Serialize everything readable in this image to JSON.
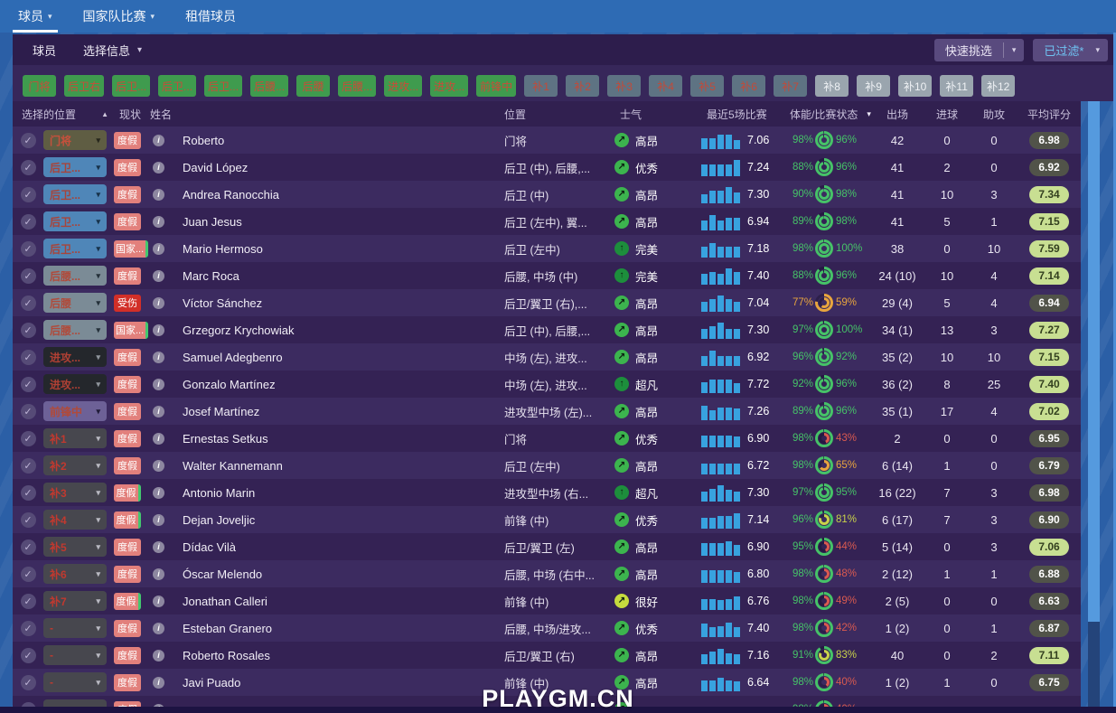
{
  "nav": {
    "tabs": [
      {
        "label": "球员"
      },
      {
        "label": "国家队比赛"
      },
      {
        "label": "租借球员"
      }
    ]
  },
  "panel": {
    "title_tab": "球员",
    "view_dropdown": "选择信息",
    "quick_pick": "快速挑选",
    "filter_button": "已过滤*"
  },
  "filters": {
    "green": [
      "门将",
      "后卫右",
      "后卫...",
      "后卫...",
      "后卫...",
      "后腰...",
      "后腰",
      "后腰...",
      "进攻...",
      "进攻...",
      "前锋中"
    ],
    "slate": [
      "补1",
      "补2",
      "补3",
      "补4",
      "补5",
      "补6",
      "补7"
    ],
    "light": [
      "补8",
      "补9",
      "补10",
      "补11",
      "补12"
    ]
  },
  "table_headers": {
    "selected_position": "选择的位置",
    "status": "现状",
    "name": "姓名",
    "position": "位置",
    "morale": "士气",
    "last5": "最近5场比赛",
    "condition": "体能/比赛状态",
    "apps": "出场",
    "goals": "进球",
    "assists": "助攻",
    "avg_rating": "平均评分"
  },
  "players": [
    {
      "sel": "门将",
      "sel_type": "gk",
      "status": "度假",
      "status_type": "vac",
      "name": "Roberto",
      "position": "门将",
      "morale": "高昂",
      "morale_type": "bright",
      "bars": [
        62,
        62,
        80,
        80,
        52
      ],
      "last5": "7.06",
      "cond": 98,
      "sharp": 96,
      "apps": "42",
      "goals": "0",
      "assists": "0",
      "rating": "6.98"
    },
    {
      "sel": "后卫...",
      "sel_type": "def",
      "status": "度假",
      "status_type": "vac",
      "name": "David López",
      "position": "后卫 (中), 后腰,...",
      "morale": "优秀",
      "morale_type": "bright",
      "bars": [
        66,
        66,
        66,
        66,
        88
      ],
      "last5": "7.24",
      "cond": 88,
      "sharp": 96,
      "apps": "41",
      "goals": "2",
      "assists": "0",
      "rating": "6.92"
    },
    {
      "sel": "后卫...",
      "sel_type": "def",
      "status": "度假",
      "status_type": "vac",
      "name": "Andrea Ranocchia",
      "position": "后卫 (中)",
      "morale": "高昂",
      "morale_type": "bright",
      "bars": [
        52,
        72,
        72,
        88,
        62
      ],
      "last5": "7.30",
      "cond": 90,
      "sharp": 98,
      "apps": "41",
      "goals": "10",
      "assists": "3",
      "rating": "7.34"
    },
    {
      "sel": "后卫...",
      "sel_type": "def",
      "status": "度假",
      "status_type": "vac",
      "name": "Juan Jesus",
      "position": "后卫 (左中), 翼...",
      "morale": "高昂",
      "morale_type": "bright",
      "bars": [
        56,
        84,
        56,
        68,
        68
      ],
      "last5": "6.94",
      "cond": 89,
      "sharp": 98,
      "apps": "41",
      "goals": "5",
      "assists": "1",
      "rating": "7.15"
    },
    {
      "sel": "后卫...",
      "sel_type": "def",
      "status": "国家...",
      "status_type": "natl",
      "name": "Mario Hermoso",
      "position": "后卫 (左中)",
      "morale": "完美",
      "morale_type": "dark",
      "bars": [
        62,
        78,
        62,
        62,
        62
      ],
      "last5": "7.18",
      "cond": 98,
      "sharp": 100,
      "apps": "38",
      "goals": "0",
      "assists": "10",
      "rating": "7.59"
    },
    {
      "sel": "后腰...",
      "sel_type": "dm",
      "status": "度假",
      "status_type": "vac",
      "name": "Marc Roca",
      "position": "后腰, 中场 (中)",
      "morale": "完美",
      "morale_type": "dark",
      "bars": [
        62,
        72,
        62,
        88,
        68
      ],
      "last5": "7.40",
      "cond": 88,
      "sharp": 96,
      "apps": "24 (10)",
      "goals": "10",
      "assists": "4",
      "rating": "7.14"
    },
    {
      "sel": "后腰",
      "sel_type": "dm",
      "status": "受伤",
      "status_type": "inj",
      "name": "Víctor Sánchez",
      "position": "后卫/翼卫 (右),...",
      "morale": "高昂",
      "morale_type": "bright",
      "bars": [
        56,
        68,
        90,
        68,
        56
      ],
      "last5": "7.04",
      "cond": 77,
      "sharp": 59,
      "apps": "29 (4)",
      "goals": "5",
      "assists": "4",
      "rating": "6.94"
    },
    {
      "sel": "后腰...",
      "sel_type": "dm",
      "status": "国家...",
      "status_type": "natl",
      "name": "Grzegorz Krychowiak",
      "position": "后卫 (中), 后腰,...",
      "morale": "高昂",
      "morale_type": "bright",
      "bars": [
        56,
        72,
        90,
        56,
        56
      ],
      "last5": "7.30",
      "cond": 97,
      "sharp": 100,
      "apps": "34 (1)",
      "goals": "13",
      "assists": "3",
      "rating": "7.27"
    },
    {
      "sel": "进攻...",
      "sel_type": "att",
      "status": "度假",
      "status_type": "vac",
      "name": "Samuel Adegbenro",
      "position": "中场 (左), 进攻...",
      "morale": "高昂",
      "morale_type": "bright",
      "bars": [
        56,
        84,
        56,
        56,
        56
      ],
      "last5": "6.92",
      "cond": 96,
      "sharp": 92,
      "apps": "35 (2)",
      "goals": "10",
      "assists": "10",
      "rating": "7.15"
    },
    {
      "sel": "进攻...",
      "sel_type": "att",
      "status": "度假",
      "status_type": "vac",
      "name": "Gonzalo Martínez",
      "position": "中场 (左), 进攻...",
      "morale": "超凡",
      "morale_type": "dark",
      "bars": [
        62,
        74,
        74,
        74,
        56
      ],
      "last5": "7.72",
      "cond": 92,
      "sharp": 96,
      "apps": "36 (2)",
      "goals": "8",
      "assists": "25",
      "rating": "7.40"
    },
    {
      "sel": "前锋中",
      "sel_type": "st",
      "status": "度假",
      "status_type": "vac",
      "name": "Josef Martínez",
      "position": "进攻型中场 (左)...",
      "morale": "高昂",
      "morale_type": "bright",
      "bars": [
        80,
        56,
        72,
        72,
        66
      ],
      "last5": "7.26",
      "cond": 89,
      "sharp": 96,
      "apps": "35 (1)",
      "goals": "17",
      "assists": "4",
      "rating": "7.02"
    },
    {
      "sel": "补1",
      "sel_type": "sub",
      "status": "度假",
      "status_type": "vac",
      "name": "Ernestas Setkus",
      "position": "门将",
      "morale": "优秀",
      "morale_type": "bright",
      "bars": [
        66,
        66,
        66,
        66,
        60
      ],
      "last5": "6.90",
      "cond": 98,
      "sharp": 43,
      "apps": "2",
      "goals": "0",
      "assists": "0",
      "rating": "6.95"
    },
    {
      "sel": "补2",
      "sel_type": "sub",
      "status": "度假",
      "status_type": "vac",
      "name": "Walter Kannemann",
      "position": "后卫 (左中)",
      "morale": "高昂",
      "morale_type": "bright",
      "bars": [
        62,
        62,
        62,
        62,
        62
      ],
      "last5": "6.72",
      "cond": 98,
      "sharp": 65,
      "apps": "6 (14)",
      "goals": "1",
      "assists": "0",
      "rating": "6.79"
    },
    {
      "sel": "补3",
      "sel_type": "sub",
      "status": "度假",
      "status_type": "vacg",
      "name": "Antonio Marin",
      "position": "进攻型中场 (右...",
      "morale": "超凡",
      "morale_type": "dark",
      "bars": [
        56,
        72,
        90,
        66,
        56
      ],
      "last5": "7.30",
      "cond": 97,
      "sharp": 95,
      "apps": "16 (22)",
      "goals": "7",
      "assists": "3",
      "rating": "6.98"
    },
    {
      "sel": "补4",
      "sel_type": "sub",
      "status": "度假",
      "status_type": "vacg",
      "name": "Dejan Joveljic",
      "position": "前锋 (中)",
      "morale": "优秀",
      "morale_type": "bright",
      "bars": [
        62,
        62,
        72,
        72,
        84
      ],
      "last5": "7.14",
      "cond": 96,
      "sharp": 81,
      "apps": "6 (17)",
      "goals": "7",
      "assists": "3",
      "rating": "6.90"
    },
    {
      "sel": "补5",
      "sel_type": "sub",
      "status": "度假",
      "status_type": "vac",
      "name": "Dídac Vilà",
      "position": "后卫/翼卫 (左)",
      "morale": "高昂",
      "morale_type": "bright",
      "bars": [
        68,
        68,
        68,
        80,
        62
      ],
      "last5": "6.90",
      "cond": 95,
      "sharp": 44,
      "apps": "5 (14)",
      "goals": "0",
      "assists": "3",
      "rating": "7.06"
    },
    {
      "sel": "补6",
      "sel_type": "sub",
      "status": "度假",
      "status_type": "vac",
      "name": "Óscar Melendo",
      "position": "后腰, 中场 (右中...",
      "morale": "高昂",
      "morale_type": "bright",
      "bars": [
        68,
        68,
        68,
        68,
        62
      ],
      "last5": "6.80",
      "cond": 98,
      "sharp": 48,
      "apps": "2 (12)",
      "goals": "1",
      "assists": "1",
      "rating": "6.88"
    },
    {
      "sel": "补7",
      "sel_type": "sub",
      "status": "度假",
      "status_type": "vacg",
      "name": "Jonathan Calleri",
      "position": "前锋 (中)",
      "morale": "很好",
      "morale_type": "yellow",
      "bars": [
        62,
        62,
        56,
        62,
        74
      ],
      "last5": "6.76",
      "cond": 98,
      "sharp": 49,
      "apps": "2 (5)",
      "goals": "0",
      "assists": "0",
      "rating": "6.63"
    },
    {
      "sel": "-",
      "sel_type": "sub",
      "status": "度假",
      "status_type": "vac",
      "name": "Esteban Granero",
      "position": "后腰, 中场/进攻...",
      "morale": "优秀",
      "morale_type": "bright",
      "bars": [
        74,
        56,
        62,
        80,
        56
      ],
      "last5": "7.40",
      "cond": 98,
      "sharp": 42,
      "apps": "1 (2)",
      "goals": "0",
      "assists": "1",
      "rating": "6.87"
    },
    {
      "sel": "-",
      "sel_type": "sub",
      "status": "度假",
      "status_type": "vac",
      "name": "Roberto Rosales",
      "position": "后卫/翼卫 (右)",
      "morale": "高昂",
      "morale_type": "bright",
      "bars": [
        56,
        68,
        84,
        62,
        56
      ],
      "last5": "7.16",
      "cond": 91,
      "sharp": 83,
      "apps": "40",
      "goals": "0",
      "assists": "2",
      "rating": "7.11"
    },
    {
      "sel": "-",
      "sel_type": "sub",
      "status": "度假",
      "status_type": "vac",
      "name": "Javi Puado",
      "position": "前锋 (中)",
      "morale": "高昂",
      "morale_type": "bright",
      "bars": [
        62,
        62,
        74,
        62,
        56
      ],
      "last5": "6.64",
      "cond": 98,
      "sharp": 40,
      "apps": "1 (2)",
      "goals": "1",
      "assists": "0",
      "rating": "6.75"
    },
    {
      "sel": "-",
      "sel_type": "sub",
      "status": "度假",
      "status_type": "vac",
      "name": "",
      "position": "",
      "morale": "",
      "morale_type": "bright",
      "bars": [
        55,
        55,
        55,
        55,
        55
      ],
      "last5": "",
      "cond": 98,
      "sharp": 40,
      "apps": "",
      "goals": "",
      "assists": "",
      "rating": ""
    }
  ],
  "watermark": "PLAYGM.CN",
  "colors": {
    "cond_green": "#46c268",
    "cond_yellow": "#c9d24a",
    "cond_orange": "#e8a53e",
    "cond_red": "#d95a50",
    "bar_blue": "#38a2df",
    "rating_good_bg": "#c8df92",
    "vacation_badge": "#e2807c",
    "injured_badge": "#d22f28",
    "national_edge": "#43c76f"
  }
}
